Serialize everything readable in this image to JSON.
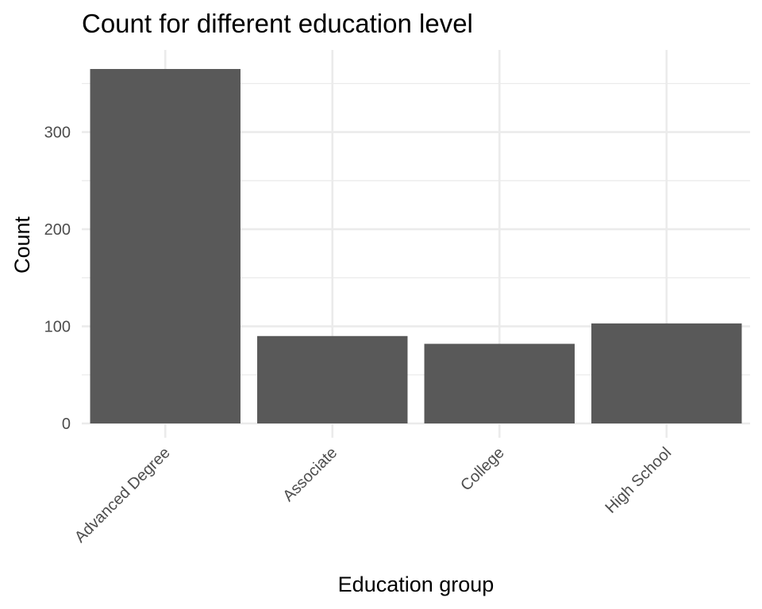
{
  "chart_data": {
    "type": "bar",
    "title": "Count for different education level",
    "xlabel": "Education group",
    "ylabel": "Count",
    "categories": [
      "Advanced Degree",
      "Associate",
      "College",
      "High School"
    ],
    "values": [
      365,
      90,
      82,
      103
    ],
    "ylim": [
      0,
      365
    ],
    "yticks": [
      0,
      100,
      200,
      300
    ],
    "y_minor_ticks": [
      50,
      150,
      250,
      350
    ],
    "grid": true,
    "legend": "none",
    "bar_color": "#595959",
    "grid_color": "#ebebeb"
  }
}
